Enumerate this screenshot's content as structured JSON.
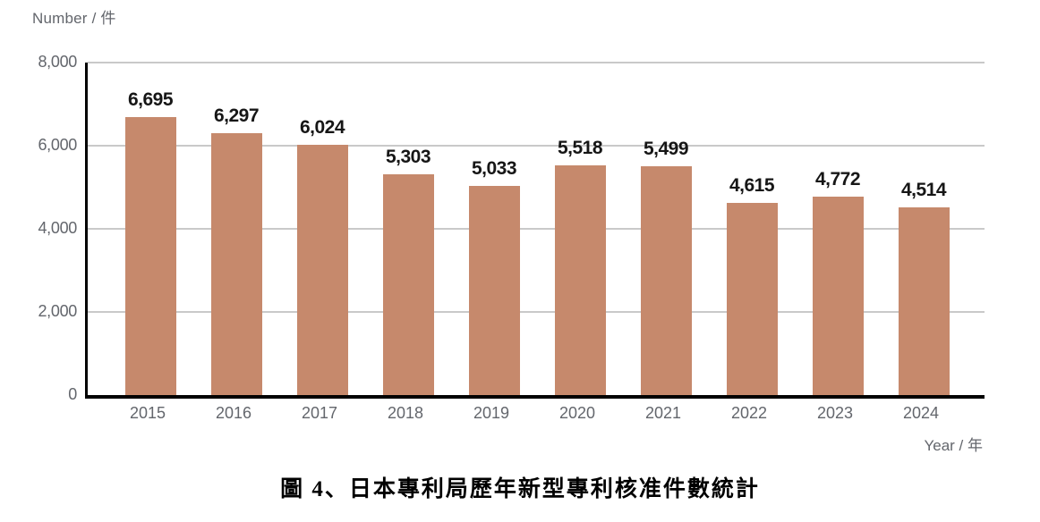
{
  "chart_data": {
    "type": "bar",
    "categories": [
      "2015",
      "2016",
      "2017",
      "2018",
      "2019",
      "2020",
      "2021",
      "2022",
      "2023",
      "2024"
    ],
    "values": [
      6695,
      6297,
      6024,
      5303,
      5033,
      5518,
      5499,
      4615,
      4772,
      4514
    ],
    "value_labels": [
      "6,695",
      "6,297",
      "6,024",
      "5,303",
      "5,033",
      "5,518",
      "5,499",
      "4,615",
      "4,772",
      "4,514"
    ],
    "title": "",
    "xlabel": "Year / 年",
    "ylabel": "Number / 件",
    "ylim": [
      0,
      8000
    ],
    "yticks": [
      0,
      2000,
      4000,
      6000,
      8000
    ],
    "ytick_labels": [
      "0",
      "2,000",
      "4,000",
      "6,000",
      "8,000"
    ],
    "grid": "horizontal",
    "legend": "none",
    "bar_color": "#c6896c"
  },
  "caption": "圖 4、日本專利局歷年新型專利核准件數統計",
  "colors": {
    "bar": "#c6896c",
    "axis": "#000000",
    "grid": "#c9c9c9",
    "tick_text": "#63666c",
    "value_text": "#161616"
  }
}
